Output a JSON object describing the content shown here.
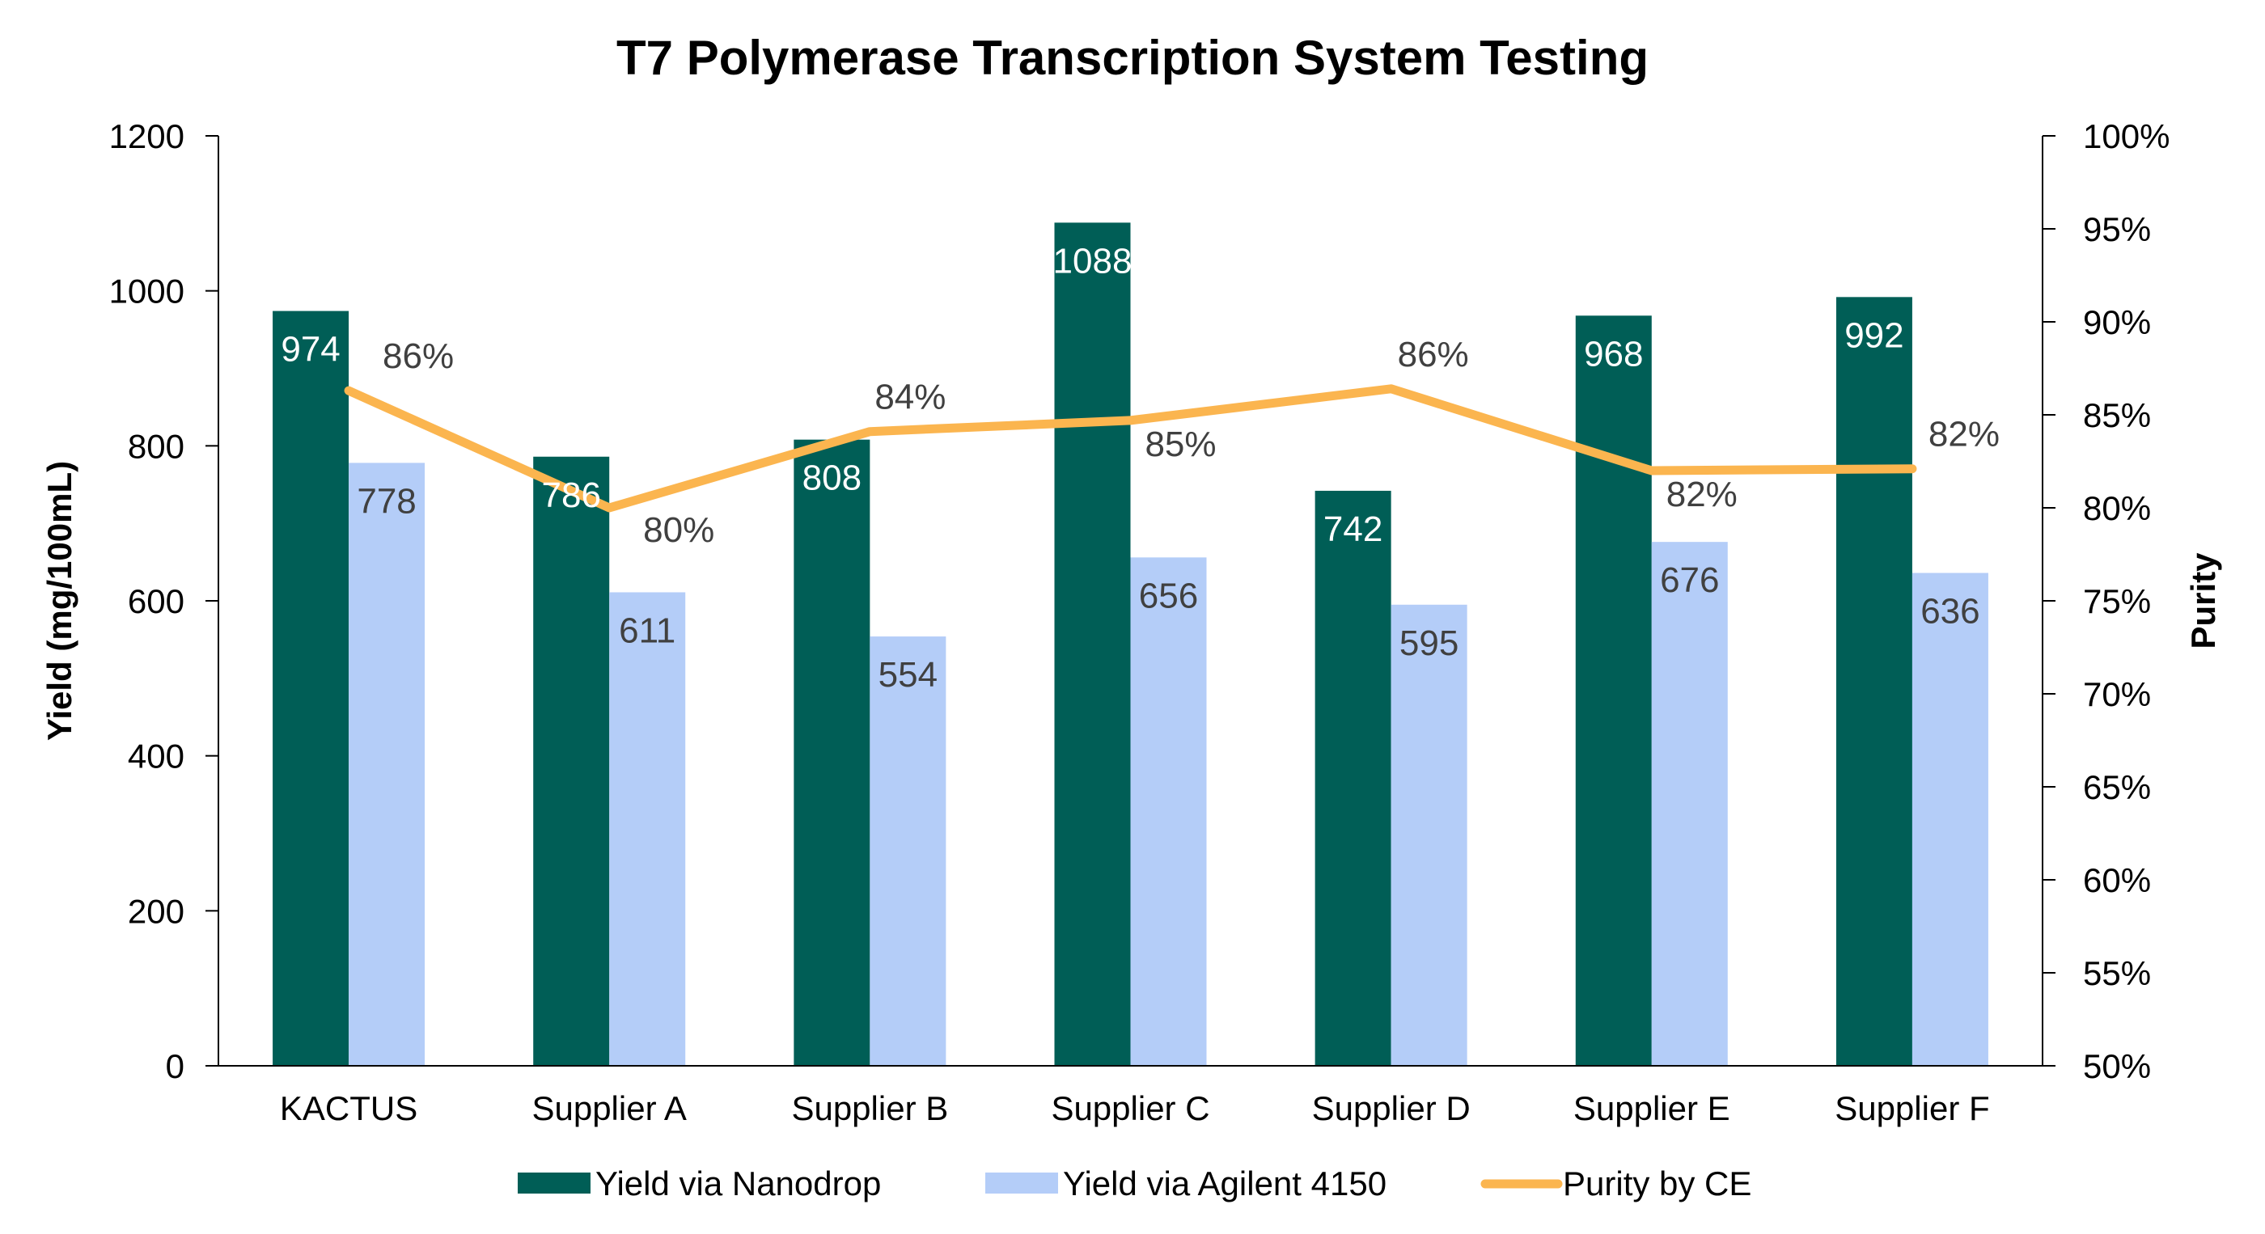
{
  "chart_data": {
    "type": "bar",
    "title": "T7 Polymerase Transcription System Testing",
    "categories": [
      "KACTUS",
      "Supplier A",
      "Supplier B",
      "Supplier C",
      "Supplier D",
      "Supplier E",
      "Supplier F"
    ],
    "ylabel": "Yield (mg/100mL)",
    "ylim": [
      0,
      1200
    ],
    "yticks": [
      "0",
      "200",
      "400",
      "600",
      "800",
      "1000",
      "1200"
    ],
    "y2label": "Purity",
    "y2lim": [
      0.5,
      1.0
    ],
    "y2ticks": [
      "50%",
      "55%",
      "60%",
      "65%",
      "70%",
      "75%",
      "80%",
      "85%",
      "90%",
      "95%",
      "100%"
    ],
    "legend_position": "bottom",
    "series": [
      {
        "name": "Yield via Nanodrop",
        "type": "bar",
        "axis": "left",
        "color": "#005E56",
        "values": [
          974,
          786,
          808,
          1088,
          742,
          968,
          992
        ],
        "labels": [
          "974",
          "786",
          "808",
          "1088",
          "742",
          "968",
          "992"
        ]
      },
      {
        "name": "Yield via Agilent 4150",
        "type": "bar",
        "axis": "left",
        "color": "#B4CDF8",
        "values": [
          778,
          611,
          554,
          656,
          595,
          676,
          636
        ],
        "labels": [
          "778",
          "611",
          "554",
          "656",
          "595",
          "676",
          "636"
        ]
      },
      {
        "name": "Purity by CE",
        "type": "line",
        "axis": "right",
        "color": "#FBB54F",
        "values": [
          0.863,
          0.8,
          0.841,
          0.847,
          0.864,
          0.82,
          0.821
        ],
        "labels": [
          "86%",
          "80%",
          "84%",
          "85%",
          "86%",
          "82%",
          "82%"
        ]
      }
    ]
  }
}
